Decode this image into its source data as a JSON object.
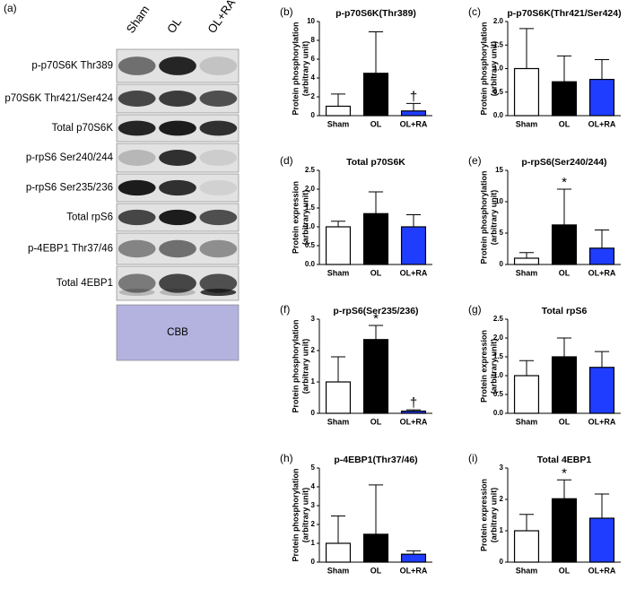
{
  "blot": {
    "panel_label": "(a)",
    "lanes": [
      "Sham",
      "OL",
      "OL+RA"
    ],
    "rows": [
      "p-p70S6K Thr389",
      "p70S6K Thr421/Ser424",
      "Total p70S6K",
      "p-rpS6  Ser240/244",
      "p-rpS6  Ser235/236",
      "Total rpS6",
      "p-4EBP1 Thr37/46",
      "Total 4EBP1",
      "CBB"
    ]
  },
  "chart_data": [
    {
      "type": "bar",
      "panel_label": "(b)",
      "title": "p-p70S6K(Thr389)",
      "ylabel": [
        "Protein phosphorylation",
        "(arbitrary unit)"
      ],
      "categories": [
        "Sham",
        "OL",
        "OL+RA"
      ],
      "colors": [
        "#ffffff",
        "#000000",
        "#1f3dff"
      ],
      "values": [
        1.0,
        4.5,
        0.5
      ],
      "errors": [
        1.3,
        4.4,
        0.8
      ],
      "value_annotations": [
        null,
        null,
        "†"
      ],
      "ylim": [
        0,
        10
      ],
      "yticks": [
        0,
        2,
        4,
        6,
        8,
        10
      ]
    },
    {
      "type": "bar",
      "panel_label": "(c)",
      "title": "p-p70S6K(Thr421/Ser424)",
      "ylabel": [
        "Protein phosphorylation",
        "(arbitrary unit)"
      ],
      "categories": [
        "Sham",
        "OL",
        "OL+RA"
      ],
      "colors": [
        "#ffffff",
        "#000000",
        "#1f3dff"
      ],
      "values": [
        1.0,
        0.72,
        0.77
      ],
      "errors": [
        0.85,
        0.55,
        0.42
      ],
      "value_annotations": [
        null,
        null,
        null
      ],
      "ylim": [
        0,
        2
      ],
      "yticks": [
        {
          "value": 0,
          "label": "0.0"
        },
        0.5,
        {
          "value": 1,
          "label": "1.0"
        },
        1.5,
        {
          "value": 2,
          "label": "2.0"
        }
      ]
    },
    {
      "type": "bar",
      "panel_label": "(d)",
      "title": "Total p70S6K",
      "ylabel": [
        "Protein expression",
        "(arbitrary unit)"
      ],
      "categories": [
        "Sham",
        "OL",
        "OL+RA"
      ],
      "colors": [
        "#ffffff",
        "#000000",
        "#1f3dff"
      ],
      "values": [
        1.0,
        1.35,
        1.0
      ],
      "errors": [
        0.15,
        0.58,
        0.32
      ],
      "value_annotations": [
        null,
        null,
        null
      ],
      "ylim": [
        0,
        2.5
      ],
      "yticks": [
        {
          "value": 0,
          "label": "0.0"
        },
        0.5,
        {
          "value": 1,
          "label": "1.0"
        },
        1.5,
        {
          "value": 2,
          "label": "2.0"
        },
        2.5
      ]
    },
    {
      "type": "bar",
      "panel_label": "(e)",
      "title": "p-rpS6(Ser240/244)",
      "ylabel": [
        "Protein phosphorylation",
        "(arbitrary unit)"
      ],
      "categories": [
        "Sham",
        "OL",
        "OL+RA"
      ],
      "colors": [
        "#ffffff",
        "#000000",
        "#1f3dff"
      ],
      "values": [
        1.0,
        6.3,
        2.6
      ],
      "errors": [
        0.9,
        5.7,
        2.9
      ],
      "value_annotations": [
        null,
        "*",
        null
      ],
      "ylim": [
        0,
        15
      ],
      "yticks": [
        0,
        5,
        10,
        15
      ]
    },
    {
      "type": "bar",
      "panel_label": "(f)",
      "title": "p-rpS6(Ser235/236)",
      "ylabel": [
        "Protein phosphorylation",
        "(arbitrary unit)"
      ],
      "categories": [
        "Sham",
        "OL",
        "OL+RA"
      ],
      "colors": [
        "#ffffff",
        "#000000",
        "#1f3dff"
      ],
      "values": [
        1.0,
        2.35,
        0.07
      ],
      "errors": [
        0.8,
        0.45,
        0.04
      ],
      "value_annotations": [
        null,
        "*",
        "†"
      ],
      "ylim": [
        0,
        3
      ],
      "yticks": [
        0,
        1,
        2,
        3
      ]
    },
    {
      "type": "bar",
      "panel_label": "(g)",
      "title": "Total rpS6",
      "ylabel": [
        "Protein expression",
        "(arbitrary unit)"
      ],
      "categories": [
        "Sham",
        "OL",
        "OL+RA"
      ],
      "colors": [
        "#ffffff",
        "#000000",
        "#1f3dff"
      ],
      "values": [
        1.0,
        1.5,
        1.22
      ],
      "errors": [
        0.4,
        0.5,
        0.42
      ],
      "value_annotations": [
        null,
        null,
        null
      ],
      "ylim": [
        0,
        2.5
      ],
      "yticks": [
        {
          "value": 0,
          "label": "0.0"
        },
        0.5,
        {
          "value": 1,
          "label": "1.0"
        },
        1.5,
        {
          "value": 2,
          "label": "2.0"
        },
        2.5
      ]
    },
    {
      "type": "bar",
      "panel_label": "(h)",
      "title": "p-4EBP1(Thr37/46)",
      "ylabel": [
        "Protein phosphorylation",
        "(arbitrary unit)"
      ],
      "categories": [
        "Sham",
        "OL",
        "OL+RA"
      ],
      "colors": [
        "#ffffff",
        "#000000",
        "#1f3dff"
      ],
      "values": [
        1.0,
        1.48,
        0.42
      ],
      "errors": [
        1.45,
        2.62,
        0.18
      ],
      "value_annotations": [
        null,
        null,
        null
      ],
      "ylim": [
        0,
        5
      ],
      "yticks": [
        0,
        1,
        2,
        3,
        4,
        5
      ]
    },
    {
      "type": "bar",
      "panel_label": "(i)",
      "title": "Total 4EBP1",
      "ylabel": [
        "Protein expression",
        "(arbitrary unit)"
      ],
      "categories": [
        "Sham",
        "OL",
        "OL+RA"
      ],
      "colors": [
        "#ffffff",
        "#000000",
        "#1f3dff"
      ],
      "values": [
        1.0,
        2.02,
        1.4
      ],
      "errors": [
        0.52,
        0.6,
        0.77
      ],
      "value_annotations": [
        null,
        "*",
        null
      ],
      "ylim": [
        0,
        3
      ],
      "yticks": [
        0,
        1,
        2,
        3
      ]
    }
  ]
}
